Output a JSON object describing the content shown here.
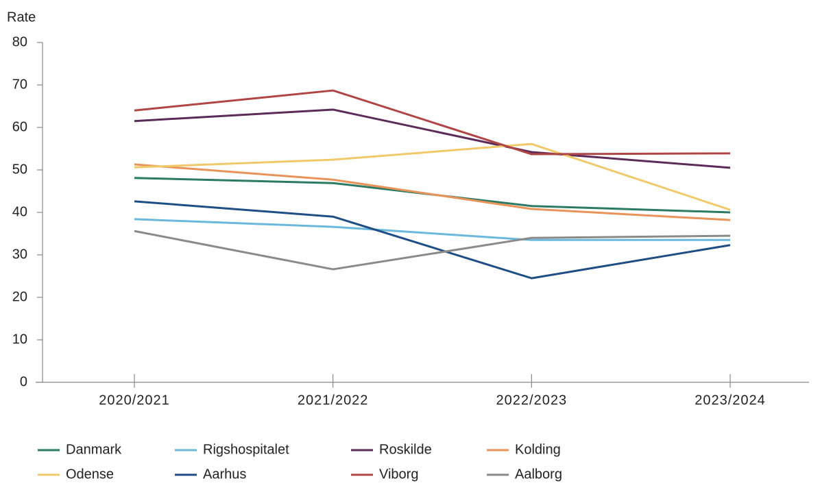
{
  "chart_data": {
    "type": "line",
    "ylabel": "Rate",
    "categories": [
      "2020/2021",
      "2021/2022",
      "2022/2023",
      "2023/2024"
    ],
    "ylim": [
      0,
      80
    ],
    "yticks": [
      0,
      10,
      20,
      30,
      40,
      50,
      60,
      70,
      80
    ],
    "series": [
      {
        "name": "Danmark",
        "color": "#2a7a64",
        "values": [
          48.1,
          46.9,
          41.5,
          40.0
        ]
      },
      {
        "name": "Rigshospitalet",
        "color": "#6bb8dc",
        "values": [
          38.4,
          36.6,
          33.5,
          33.5
        ]
      },
      {
        "name": "Roskilde",
        "color": "#5b2c5a",
        "values": [
          61.5,
          64.2,
          54.2,
          50.5
        ]
      },
      {
        "name": "Kolding",
        "color": "#e8935a",
        "values": [
          51.3,
          47.7,
          40.8,
          38.2
        ]
      },
      {
        "name": "Odense",
        "color": "#f0ca6a",
        "values": [
          50.6,
          52.4,
          56.1,
          40.6
        ]
      },
      {
        "name": "Aarhus",
        "color": "#1f4e85",
        "values": [
          42.6,
          39.0,
          24.5,
          32.3
        ]
      },
      {
        "name": "Viborg",
        "color": "#b04545",
        "values": [
          64.0,
          68.7,
          53.7,
          53.9
        ]
      },
      {
        "name": "Aalborg",
        "color": "#8a8a8a",
        "values": [
          35.6,
          26.6,
          34.0,
          34.5
        ]
      }
    ]
  }
}
